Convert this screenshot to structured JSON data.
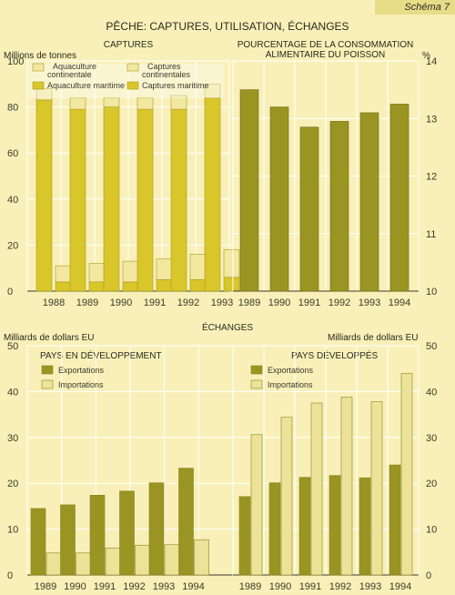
{
  "header": {
    "schema_label": "Schéma 7",
    "title": "PÊCHE: CAPTURES, UTILISATION, ÉCHANGES",
    "exchanges_title": "ÉCHANGES"
  },
  "colors": {
    "background": "#f8f0b8",
    "gold": "#d8c62a",
    "pale": "#f2e8a0",
    "olive": "#9a9422",
    "olive_light": "#ece298",
    "grid": "#ffffff",
    "axis": "#3a3a2a"
  },
  "chart_data": [
    {
      "id": "captures",
      "type": "bar",
      "title": "CAPTURES",
      "ylabel": "Millions de tonnes",
      "ylim": [
        0,
        100
      ],
      "yticks": [
        0,
        20,
        40,
        60,
        80,
        100
      ],
      "categories": [
        "1988",
        "1989",
        "1990",
        "1991",
        "1992",
        "1993"
      ],
      "stacked_groups": [
        {
          "series": [
            {
              "name": "Captures maritime",
              "color": "#d8c62a",
              "values": [
                83,
                79,
                80,
                79,
                79,
                84
              ]
            },
            {
              "name": "Captures continentales",
              "color": "#f2e8a0",
              "values": [
                5,
                5,
                4,
                5,
                6,
                6
              ]
            }
          ]
        },
        {
          "series": [
            {
              "name": "Aquaculture maritime",
              "color": "#d8c62a",
              "values": [
                4,
                4,
                4,
                5,
                5,
                6
              ]
            },
            {
              "name": "Aquaculture continentale",
              "color": "#f2e8a0",
              "values": [
                7,
                8,
                9,
                9,
                11,
                12
              ]
            }
          ]
        }
      ],
      "legend": [
        {
          "label": "Aquaculture continentale",
          "color": "#f2e8a0"
        },
        {
          "label": "Captures continentales",
          "color": "#f2e8a0"
        },
        {
          "label": "Aquaculture maritime",
          "color": "#d8c62a"
        },
        {
          "label": "Captures maritime",
          "color": "#d8c62a"
        }
      ],
      "legend_position": "top"
    },
    {
      "id": "consommation",
      "type": "bar",
      "title": "POURCENTAGE DE LA CONSOMMATION ALIMENTAIRE DU POISSON",
      "ylabel": "%",
      "y_axis_side": "right",
      "ylim": [
        10,
        14
      ],
      "yticks": [
        10,
        11,
        12,
        13,
        14
      ],
      "categories": [
        "1989",
        "1990",
        "1991",
        "1992",
        "1993",
        "1994"
      ],
      "series": [
        {
          "name": "",
          "color": "#9a9422",
          "values": [
            13.5,
            13.2,
            12.85,
            12.95,
            13.1,
            13.25
          ]
        }
      ]
    },
    {
      "id": "pays_developpement",
      "type": "bar",
      "title": "PAYS EN DÉVELOPPEMENT",
      "ylabel": "Milliards de dollars EU",
      "ylim": [
        0,
        50
      ],
      "yticks": [
        0,
        10,
        20,
        30,
        40,
        50
      ],
      "categories": [
        "1989",
        "1990",
        "1991",
        "1992",
        "1993",
        "1994"
      ],
      "series": [
        {
          "name": "Exportations",
          "color": "#9a9422",
          "values": [
            14.5,
            15.3,
            17.4,
            18.3,
            20.1,
            23.3
          ]
        },
        {
          "name": "Importations",
          "color": "#ece298",
          "values": [
            4.8,
            4.8,
            5.9,
            6.5,
            6.6,
            7.7
          ]
        }
      ],
      "legend_position": "top-left"
    },
    {
      "id": "pays_developpes",
      "type": "bar",
      "title": "PAYS DÉVELOPPÉS",
      "ylabel": "Milliards de dollars EU",
      "y_axis_side": "right",
      "ylim": [
        0,
        50
      ],
      "yticks": [
        0,
        10,
        20,
        30,
        40,
        50
      ],
      "categories": [
        "1989",
        "1990",
        "1991",
        "1992",
        "1993",
        "1994"
      ],
      "series": [
        {
          "name": "Exportations",
          "color": "#9a9422",
          "values": [
            17.1,
            20.1,
            21.3,
            21.7,
            21.2,
            24
          ]
        },
        {
          "name": "Importations",
          "color": "#ece298",
          "values": [
            30.6,
            34.4,
            37.5,
            38.8,
            37.8,
            44
          ]
        }
      ],
      "legend_position": "top-left"
    }
  ]
}
